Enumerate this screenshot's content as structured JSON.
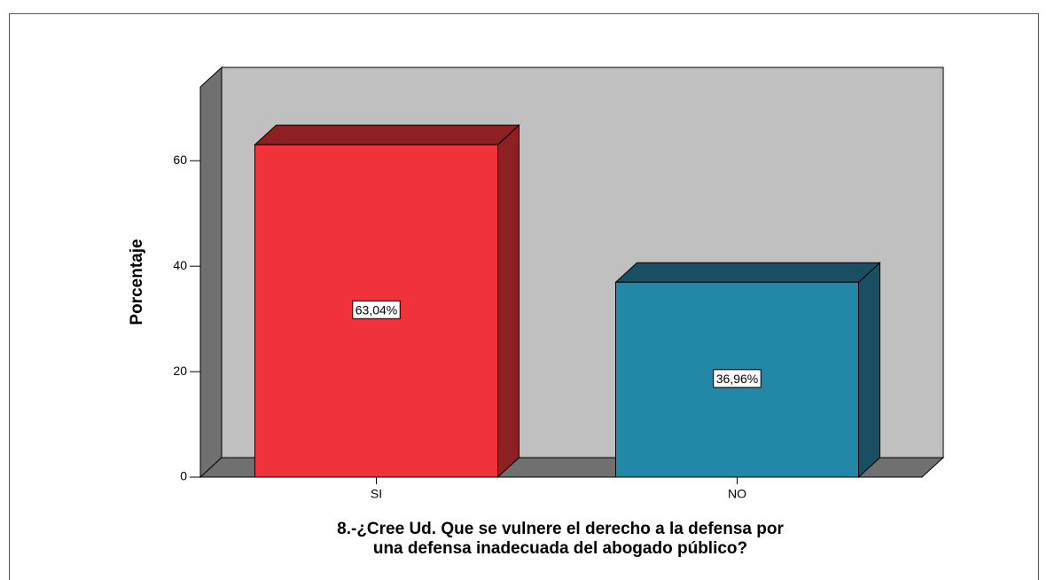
{
  "chart_data": {
    "type": "bar3d",
    "xlabel": [
      "8.-¿Cree Ud. Que se vulnere el derecho a la defensa  por",
      "una defensa inadecuada del abogado público?"
    ],
    "ylabel": "Porcentaje",
    "categories": [
      "SI",
      "NO"
    ],
    "values": [
      63.04,
      36.96
    ],
    "value_labels": [
      "63,04%",
      "36,96%"
    ],
    "colors": [
      "#f0323a",
      "#2388a8"
    ],
    "side_colors": [
      "#8e1f22",
      "#1a4f63"
    ],
    "ylim": [
      0,
      74
    ],
    "yticks": [
      0,
      20,
      40,
      60
    ]
  }
}
